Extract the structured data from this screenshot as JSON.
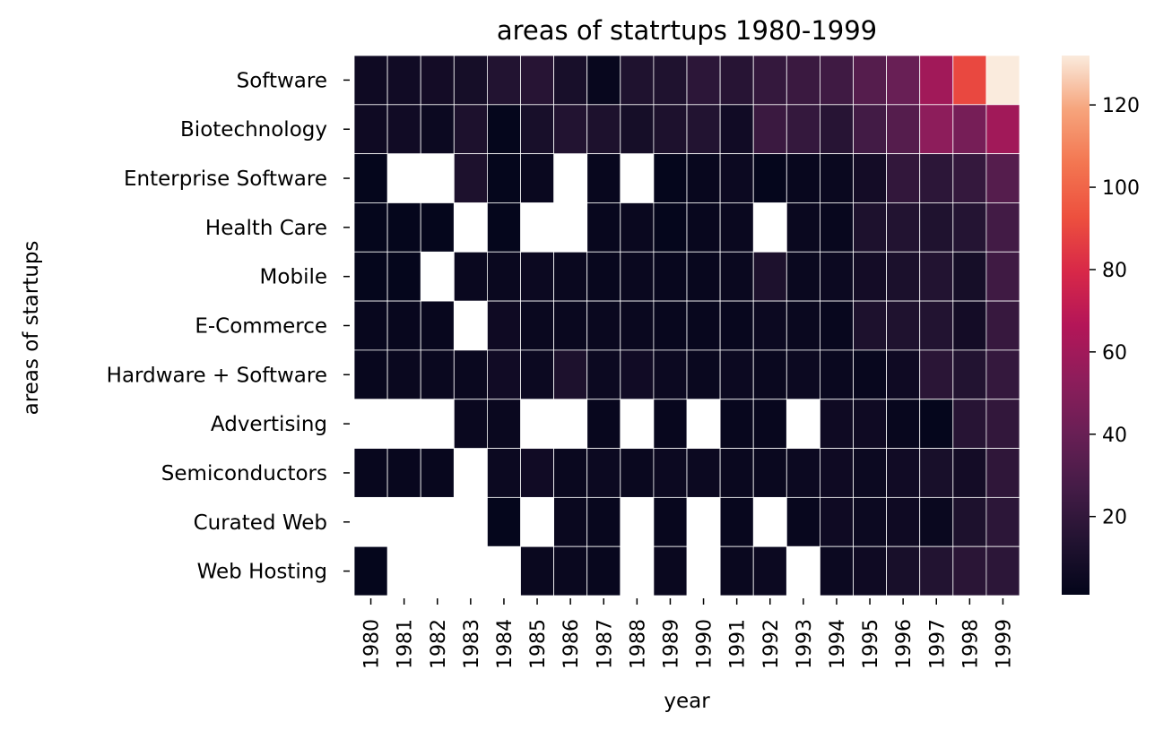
{
  "chart_data": {
    "type": "heatmap",
    "title": "areas of statrtups 1980-1999",
    "xlabel": "year",
    "ylabel": "areas of startups",
    "x": [
      "1980",
      "1981",
      "1982",
      "1983",
      "1984",
      "1985",
      "1986",
      "1987",
      "1988",
      "1989",
      "1990",
      "1991",
      "1992",
      "1993",
      "1994",
      "1995",
      "1996",
      "1997",
      "1998",
      "1999"
    ],
    "y": [
      "Software",
      "Biotechnology",
      "Enterprise Software",
      "Health Care",
      "Mobile",
      "E-Commerce",
      "Hardware + Software",
      "Advertising",
      "Semiconductors",
      "Curated Web",
      "Web Hosting"
    ],
    "values": [
      [
        6,
        7,
        8,
        9,
        14,
        16,
        10,
        3,
        13,
        13,
        18,
        16,
        21,
        23,
        25,
        33,
        40,
        60,
        90,
        132
      ],
      [
        6,
        7,
        5,
        12,
        2,
        10,
        14,
        12,
        9,
        12,
        14,
        7,
        23,
        21,
        16,
        26,
        33,
        53,
        45,
        60
      ],
      [
        2,
        null,
        null,
        12,
        2,
        4,
        null,
        3,
        null,
        2,
        3,
        5,
        2,
        3,
        4,
        8,
        20,
        18,
        21,
        33
      ],
      [
        2,
        2,
        2,
        null,
        2,
        null,
        null,
        3,
        4,
        2,
        3,
        4,
        null,
        4,
        3,
        12,
        14,
        13,
        15,
        26
      ],
      [
        2,
        2,
        null,
        4,
        4,
        5,
        4,
        3,
        4,
        3,
        3,
        4,
        12,
        4,
        5,
        8,
        11,
        14,
        9,
        25
      ],
      [
        3,
        3,
        3,
        null,
        6,
        4,
        4,
        4,
        4,
        3,
        3,
        3,
        5,
        4,
        3,
        12,
        13,
        14,
        8,
        22
      ],
      [
        3,
        4,
        4,
        4,
        7,
        5,
        12,
        5,
        7,
        5,
        4,
        5,
        4,
        5,
        4,
        3,
        6,
        17,
        14,
        21
      ],
      [
        null,
        null,
        null,
        4,
        4,
        null,
        null,
        3,
        null,
        3,
        null,
        3,
        3,
        null,
        6,
        6,
        3,
        2,
        16,
        20
      ],
      [
        3,
        3,
        3,
        null,
        5,
        7,
        4,
        5,
        4,
        5,
        5,
        4,
        4,
        5,
        6,
        5,
        7,
        10,
        8,
        19
      ],
      [
        null,
        null,
        null,
        null,
        2,
        null,
        4,
        3,
        null,
        3,
        null,
        3,
        null,
        3,
        6,
        5,
        6,
        4,
        12,
        18
      ],
      [
        2,
        null,
        null,
        null,
        null,
        4,
        4,
        3,
        null,
        4,
        null,
        4,
        5,
        null,
        5,
        6,
        10,
        14,
        17,
        18
      ]
    ],
    "colorbar": {
      "ticks": [
        20,
        40,
        60,
        80,
        100,
        120
      ],
      "min": 1,
      "max": 132
    },
    "colormap": "rocket",
    "missing_color": "#ffffff",
    "cell_border_color": "#ffffff",
    "grid": false
  }
}
